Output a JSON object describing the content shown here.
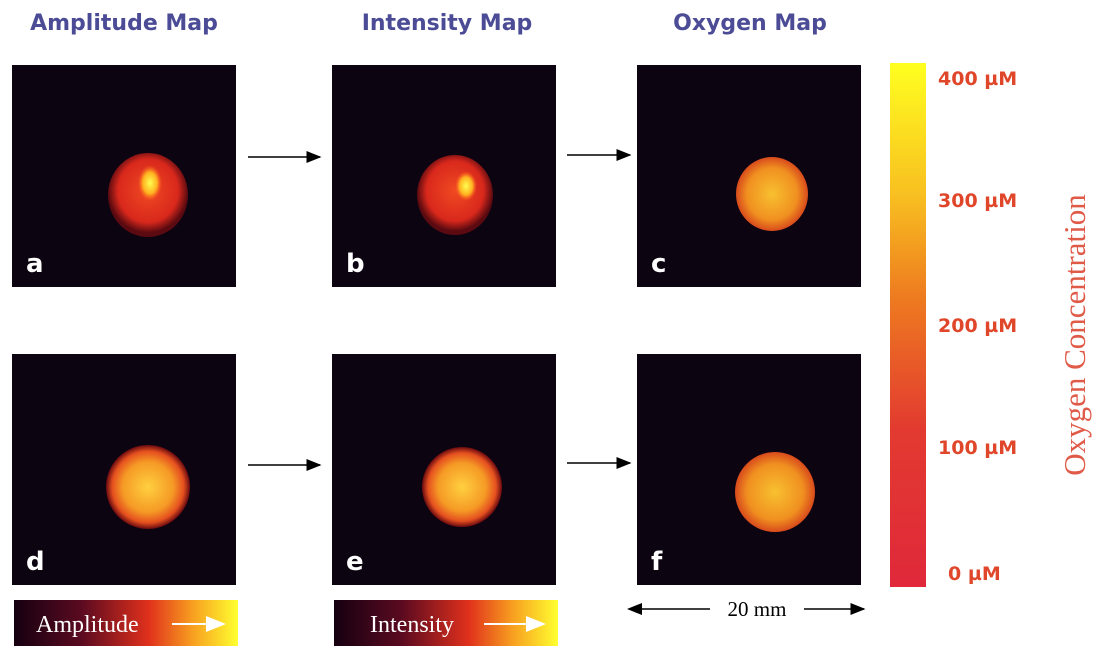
{
  "column_titles": [
    "Amplitude Map",
    "Intensity Map",
    "Oxygen Map"
  ],
  "panels": [
    "a",
    "b",
    "c",
    "d",
    "e",
    "f"
  ],
  "legend_bars": [
    "Amplitude",
    "Intensity"
  ],
  "colorbar": {
    "title": "Oxygen Concentration",
    "labels": [
      "400 µM",
      "300 µM",
      "200 µM",
      "100 µM",
      "0 µM"
    ]
  },
  "scale_bar": "20 mm"
}
